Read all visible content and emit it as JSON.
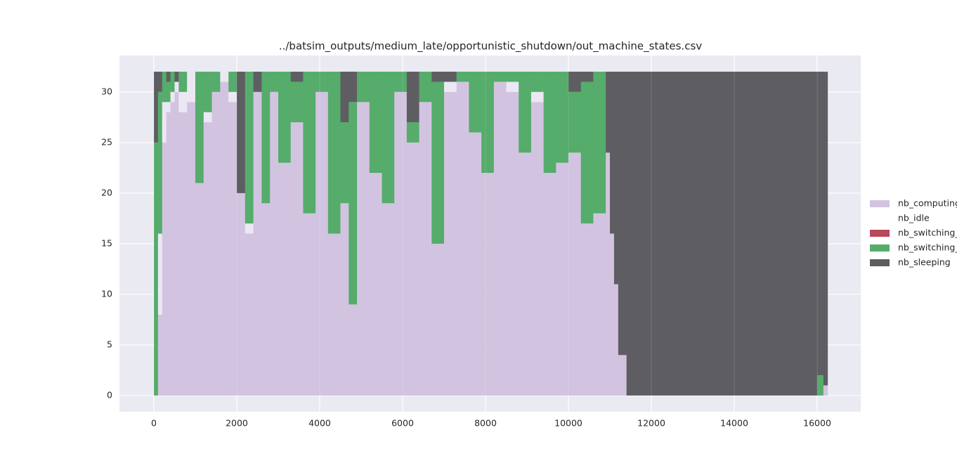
{
  "chart_data": {
    "type": "stacked_step_area",
    "title": "../batsim_outputs/medium_late/opportunistic_shutdown/out_machine_states.csv",
    "x": [
      0,
      100,
      200,
      300,
      400,
      500,
      600,
      800,
      1000,
      1200,
      1400,
      1600,
      1800,
      2000,
      2200,
      2400,
      2600,
      2800,
      3000,
      3300,
      3600,
      3900,
      4200,
      4500,
      4700,
      4900,
      5200,
      5500,
      5800,
      6100,
      6400,
      6700,
      7000,
      7300,
      7600,
      7900,
      8200,
      8500,
      8800,
      9100,
      9400,
      9700,
      10000,
      10300,
      10600,
      10900,
      11000,
      11100,
      11200,
      11400,
      16000,
      16150,
      16250
    ],
    "series": [
      {
        "name": "nb_computing",
        "color": "#d2c4e0",
        "values": [
          0,
          8,
          25,
          28,
          29,
          30,
          28,
          29,
          21,
          27,
          30,
          31,
          29,
          20,
          16,
          30,
          19,
          30,
          23,
          27,
          18,
          30,
          16,
          19,
          9,
          29,
          22,
          19,
          30,
          25,
          29,
          15,
          30,
          31,
          26,
          22,
          31,
          30,
          24,
          29,
          22,
          23,
          24,
          17,
          18,
          24,
          16,
          11,
          4,
          0,
          0,
          1,
          1
        ]
      },
      {
        "name": "nb_idle",
        "color": "#ebe8f3",
        "values": [
          0,
          8,
          4,
          1,
          1,
          1,
          2,
          3,
          0,
          1,
          0,
          1,
          1,
          0,
          1,
          0,
          0,
          0,
          0,
          0,
          0,
          0,
          0,
          0,
          0,
          0,
          0,
          0,
          0,
          0,
          0,
          0,
          1,
          0,
          0,
          0,
          0,
          1,
          0,
          1,
          0,
          0,
          0,
          0,
          0,
          0,
          0,
          0,
          0,
          0,
          0,
          0,
          0
        ]
      },
      {
        "name": "nb_switching_",
        "color": "#b8475a",
        "values": [
          0,
          0,
          0,
          0,
          0,
          0,
          0,
          0,
          0,
          0,
          0,
          0,
          0,
          0,
          0,
          0,
          0,
          0,
          0,
          0,
          0,
          0,
          0,
          0,
          0,
          0,
          0,
          0,
          0,
          0,
          0,
          0,
          0,
          0,
          0,
          0,
          0,
          0,
          0,
          0,
          0,
          0,
          0,
          0,
          0,
          0,
          0,
          0,
          0,
          0,
          0,
          0,
          0
        ]
      },
      {
        "name": "nb_switching_",
        "color": "#55ac6b",
        "values": [
          25,
          14,
          3,
          2,
          2,
          0,
          2,
          0,
          11,
          4,
          2,
          0,
          2,
          0,
          15,
          0,
          13,
          2,
          9,
          4,
          14,
          2,
          16,
          8,
          20,
          3,
          10,
          13,
          2,
          2,
          3,
          16,
          0,
          1,
          6,
          10,
          1,
          1,
          8,
          2,
          10,
          9,
          6,
          14,
          14,
          0,
          0,
          0,
          0,
          0,
          2,
          0,
          0
        ]
      },
      {
        "name": "nb_sleeping",
        "color": "#5e5e62",
        "values": [
          7,
          2,
          0,
          1,
          0,
          1,
          0,
          0,
          0,
          0,
          0,
          0,
          0,
          12,
          0,
          2,
          0,
          0,
          0,
          1,
          0,
          0,
          0,
          5,
          3,
          0,
          0,
          0,
          0,
          5,
          0,
          1,
          1,
          0,
          0,
          0,
          0,
          0,
          0,
          0,
          0,
          0,
          2,
          1,
          0,
          8,
          16,
          21,
          28,
          32,
          30,
          31,
          31
        ]
      }
    ],
    "xlim": [
      -830,
      17050
    ],
    "ylim": [
      -1.6,
      33.6
    ],
    "xticks": [
      0,
      2000,
      4000,
      6000,
      8000,
      10000,
      12000,
      14000,
      16000
    ],
    "yticks": [
      0,
      5,
      10,
      15,
      20,
      25,
      30
    ],
    "grid": true,
    "legend": "right"
  }
}
